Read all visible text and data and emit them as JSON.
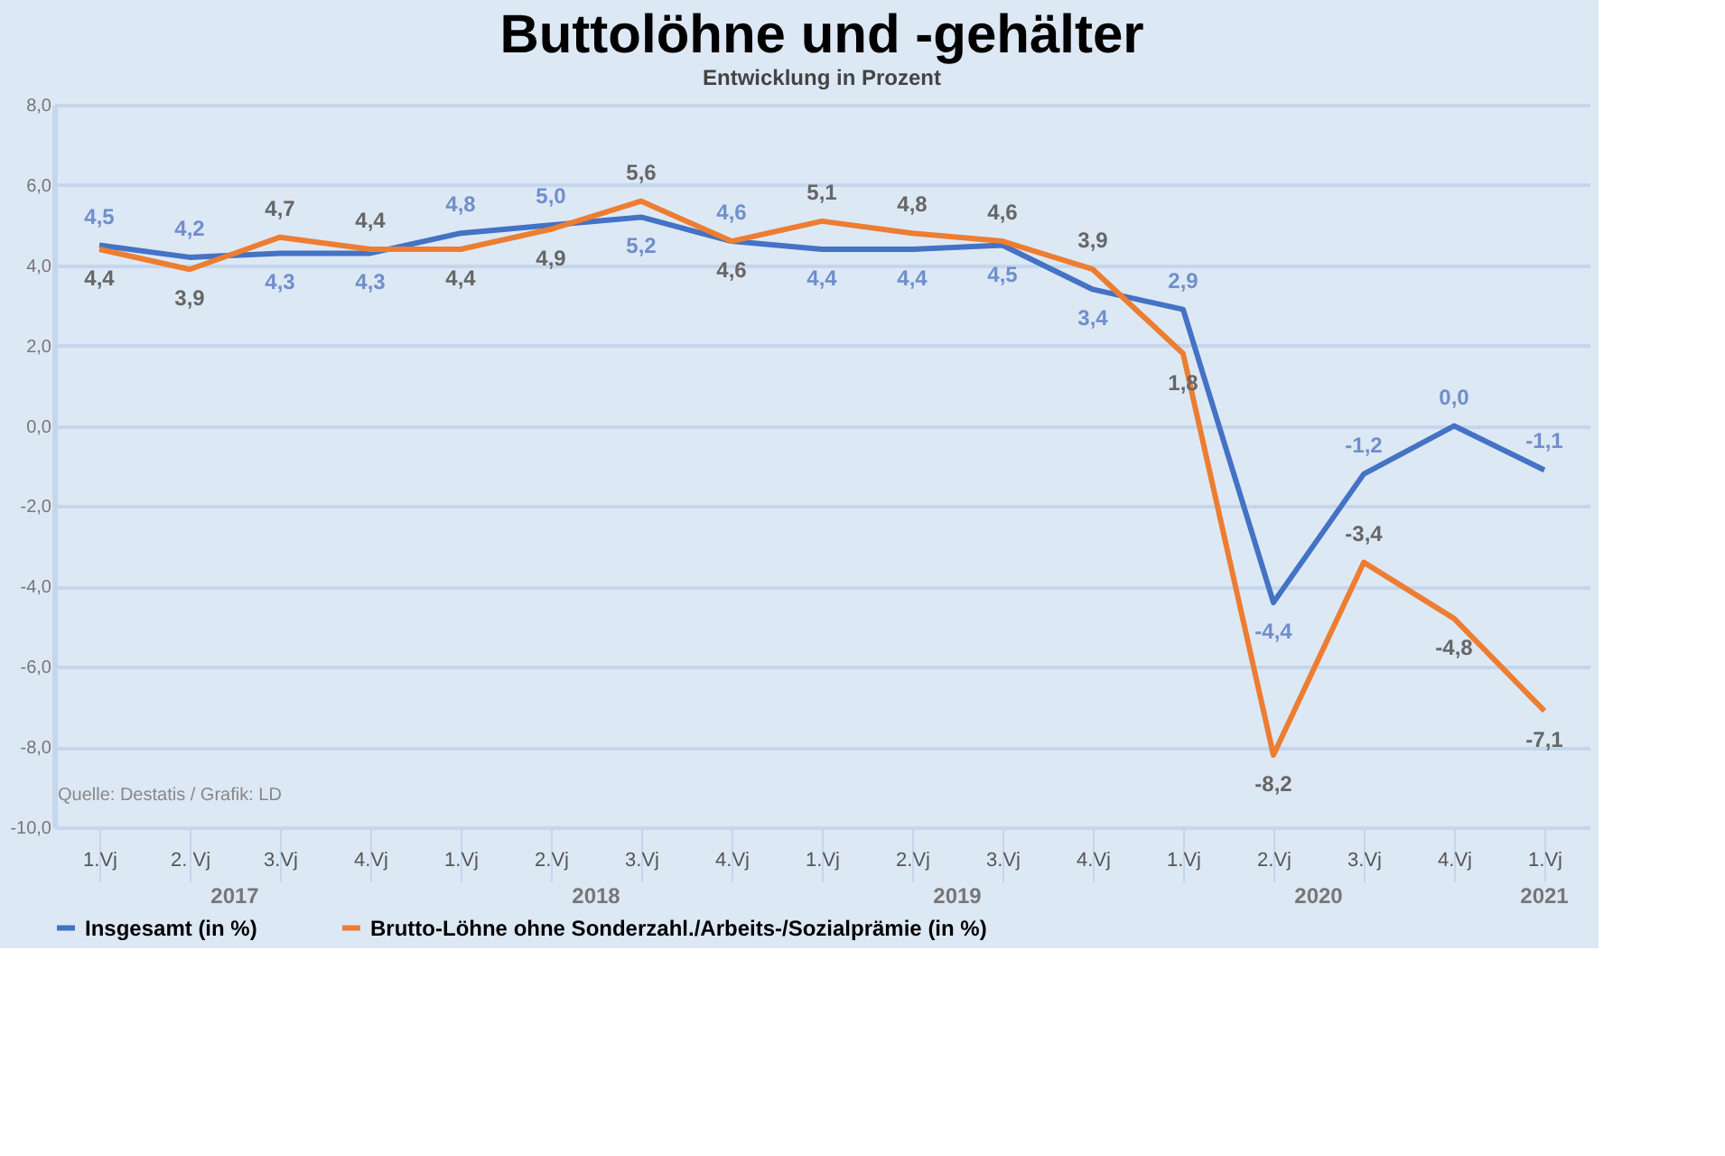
{
  "chart_data": {
    "type": "line",
    "title": "Buttolöhne und -gehälter",
    "subtitle": "Entwicklung in Prozent",
    "categories": [
      "1.Vj",
      "2. Vj",
      "3.Vj",
      "4.Vj",
      "1.Vj",
      "2.Vj",
      "3.Vj",
      "4.Vj",
      "1.Vj",
      "2.Vj",
      "3.Vj",
      "4.Vj",
      "1.Vj",
      "2.Vj",
      "3.Vj",
      "4.Vj",
      "1.Vj"
    ],
    "series": [
      {
        "name": "Insgesamt (in %)",
        "color": "#4472c4",
        "values": [
          4.5,
          4.2,
          4.3,
          4.3,
          4.8,
          5.0,
          5.2,
          4.6,
          4.4,
          4.4,
          4.5,
          3.4,
          2.9,
          -4.4,
          -1.2,
          0.0,
          -1.1
        ],
        "value_labels": [
          "4,5",
          "4,2",
          "4,3",
          "4,3",
          "4,8",
          "5,0",
          "5,2",
          "4,6",
          "4,4",
          "4,4",
          "4,5",
          "3,4",
          "2,9",
          "-4,4",
          "-1,2",
          "0,0",
          "-1,1"
        ]
      },
      {
        "name": "Brutto-Löhne ohne Sonderzahl./Arbeits-/Sozialprämie (in %)",
        "color": "#ed7d31",
        "values": [
          4.4,
          3.9,
          4.7,
          4.4,
          4.4,
          4.9,
          5.6,
          4.6,
          5.1,
          4.8,
          4.6,
          3.9,
          1.8,
          -8.2,
          -3.4,
          -4.8,
          -7.1
        ],
        "value_labels": [
          "4,4",
          "3,9",
          "4,7",
          "4,4",
          "4,4",
          "4,9",
          "5,6",
          "4,6",
          "5,1",
          "4,8",
          "4,6",
          "3,9",
          "1,8",
          "-8,2",
          "-3,4",
          "-4,8",
          "-7,1"
        ]
      }
    ],
    "ylim": [
      -10,
      8
    ],
    "yticks": [
      {
        "value": 8,
        "label": "8,0"
      },
      {
        "value": 6,
        "label": "6,0"
      },
      {
        "value": 4,
        "label": "4,0"
      },
      {
        "value": 2,
        "label": "2,0"
      },
      {
        "value": 0,
        "label": "0,0"
      },
      {
        "value": -2,
        "label": "-2,0"
      },
      {
        "value": -4,
        "label": "-4,0"
      },
      {
        "value": -6,
        "label": "-6,0"
      },
      {
        "value": -8,
        "label": "-8,0"
      },
      {
        "value": -10,
        "label": "-10,0"
      }
    ],
    "grid": "y",
    "legend": "bottom",
    "marker": "none",
    "line_style": "solid",
    "annotations": [
      "Quelle: Destatis / Grafik: LD",
      "2017",
      "2018",
      "2019",
      "2020",
      "2021"
    ]
  }
}
